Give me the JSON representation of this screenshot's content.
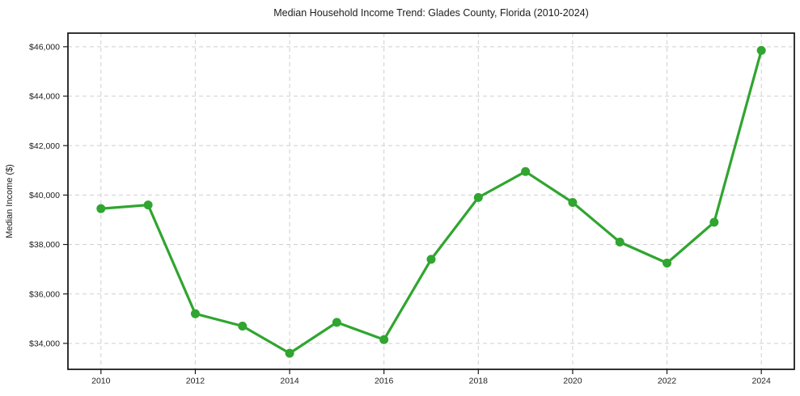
{
  "chart_data": {
    "type": "line",
    "title": "Median Household Income Trend: Glades County, Florida (2010-2024)",
    "xlabel": "",
    "ylabel": "Median Income ($)",
    "x": [
      2010,
      2011,
      2012,
      2013,
      2014,
      2015,
      2016,
      2017,
      2018,
      2019,
      2020,
      2021,
      2022,
      2023,
      2024
    ],
    "values": [
      39450,
      39600,
      35200,
      34700,
      33600,
      34850,
      34150,
      37400,
      39900,
      40950,
      39700,
      38100,
      37250,
      38900,
      45850
    ],
    "x_ticks": [
      2010,
      2012,
      2014,
      2016,
      2018,
      2020,
      2022,
      2024
    ],
    "x_tick_labels": [
      "2010",
      "2012",
      "2014",
      "2016",
      "2018",
      "2020",
      "2022",
      "2024"
    ],
    "y_ticks": [
      34000,
      36000,
      38000,
      40000,
      42000,
      44000,
      46000
    ],
    "y_tick_labels": [
      "$34,000",
      "$36,000",
      "$38,000",
      "$40,000",
      "$42,000",
      "$44,000",
      "$46,000"
    ],
    "xlim": [
      2009.3,
      2024.7
    ],
    "ylim": [
      32950,
      46550
    ],
    "grid": true,
    "legend": "none",
    "colors": {
      "line": "#30a530",
      "marker": "#30a530",
      "grid": "#cfcfcf",
      "axis": "#1c1c1c",
      "background": "#ffffff"
    }
  }
}
